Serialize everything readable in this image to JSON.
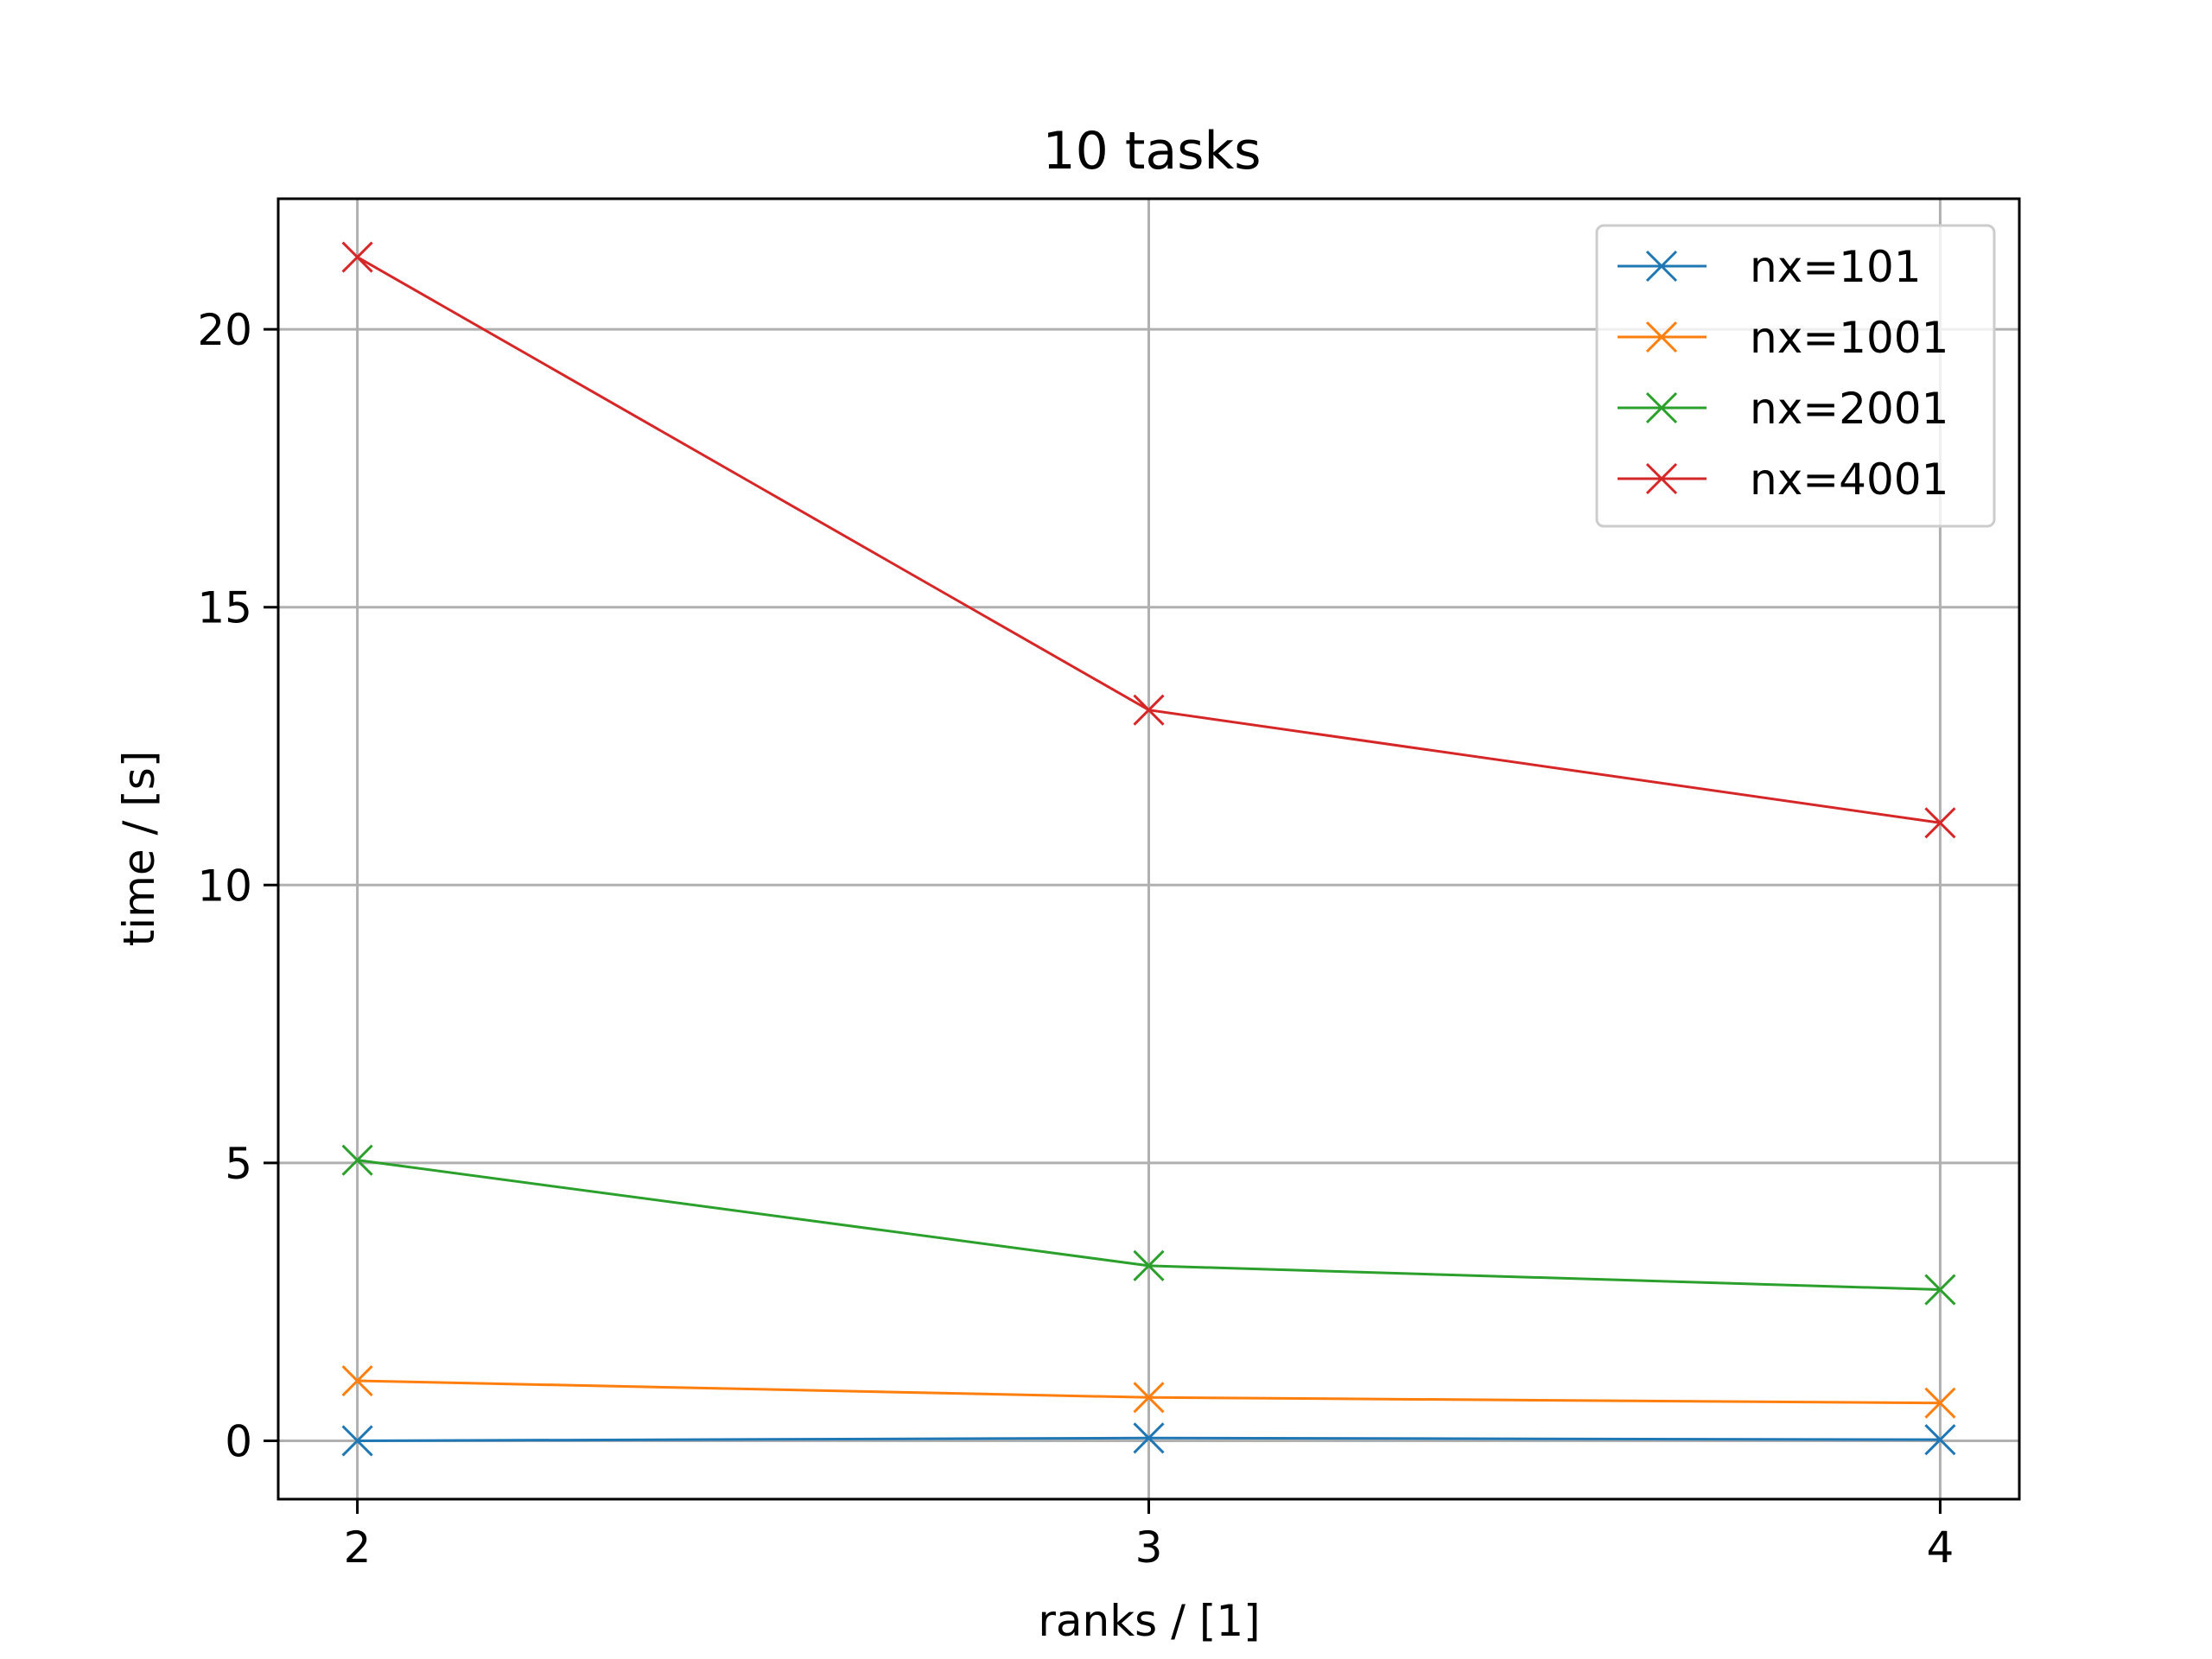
{
  "chart_data": {
    "type": "line",
    "title": "10 tasks",
    "xlabel": "ranks / [1]",
    "ylabel": "time / [s]",
    "x": [
      2,
      3,
      4
    ],
    "x_ticks": [
      "2",
      "3",
      "4"
    ],
    "y_ticks": [
      "0",
      "5",
      "10",
      "15",
      "20"
    ],
    "y_tick_values": [
      0,
      5,
      10,
      15,
      20
    ],
    "xlim": [
      1.9,
      4.1
    ],
    "ylim": [
      -1.05,
      22.35
    ],
    "grid": true,
    "legend_position": "top-right",
    "marker": "x",
    "series": [
      {
        "name": "nx=101",
        "color": "#1f77b4",
        "values": [
          0.0,
          0.05,
          0.02
        ]
      },
      {
        "name": "nx=1001",
        "color": "#ff7f0e",
        "values": [
          1.08,
          0.78,
          0.68
        ]
      },
      {
        "name": "nx=2001",
        "color": "#2ca02c",
        "values": [
          5.05,
          3.15,
          2.72
        ]
      },
      {
        "name": "nx=4001",
        "color": "#d62728",
        "values": [
          21.3,
          13.15,
          11.12
        ]
      }
    ]
  }
}
